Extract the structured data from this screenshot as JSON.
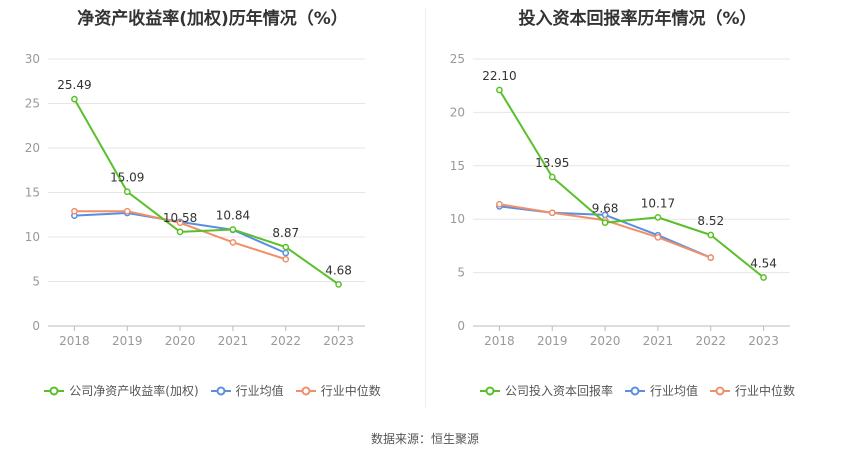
{
  "source_text": "数据来源：恒生聚源",
  "colors": {
    "company": "#5ac02a",
    "avg": "#5b8ee0",
    "median": "#f0906a",
    "grid": "#e6e6e6",
    "axis": "#999999"
  },
  "chart_data": [
    {
      "type": "line",
      "title": "净资产收益率(加权)历年情况（%）",
      "x": [
        "2018",
        "2019",
        "2020",
        "2021",
        "2022",
        "2023"
      ],
      "ylim": [
        0,
        30
      ],
      "yticks": [
        0,
        5,
        10,
        15,
        20,
        25,
        30
      ],
      "grid": true,
      "legend_placement": "bottom",
      "series": [
        {
          "name": "公司净资产收益率(加权)",
          "color": "#5ac02a",
          "labels": true,
          "values": [
            25.49,
            15.09,
            10.58,
            10.84,
            8.87,
            4.68
          ]
        },
        {
          "name": "行业均值",
          "color": "#5b8ee0",
          "labels": false,
          "values": [
            12.4,
            12.7,
            11.7,
            10.8,
            8.2,
            null
          ]
        },
        {
          "name": "行业中位数",
          "color": "#f0906a",
          "labels": false,
          "values": [
            12.9,
            12.9,
            11.6,
            9.4,
            7.5,
            null
          ]
        }
      ]
    },
    {
      "type": "line",
      "title": "投入资本回报率历年情况（%）",
      "x": [
        "2018",
        "2019",
        "2020",
        "2021",
        "2022",
        "2023"
      ],
      "ylim": [
        0,
        25
      ],
      "yticks": [
        0,
        5,
        10,
        15,
        20,
        25
      ],
      "grid": true,
      "legend_placement": "bottom",
      "series": [
        {
          "name": "公司投入资本回报率",
          "color": "#5ac02a",
          "labels": true,
          "values": [
            22.1,
            13.95,
            9.68,
            10.17,
            8.52,
            4.54
          ]
        },
        {
          "name": "行业均值",
          "color": "#5b8ee0",
          "labels": false,
          "values": [
            11.2,
            10.6,
            10.4,
            8.5,
            6.4,
            null
          ]
        },
        {
          "name": "行业中位数",
          "color": "#f0906a",
          "labels": false,
          "values": [
            11.4,
            10.6,
            9.9,
            8.3,
            6.4,
            null
          ]
        }
      ]
    }
  ]
}
